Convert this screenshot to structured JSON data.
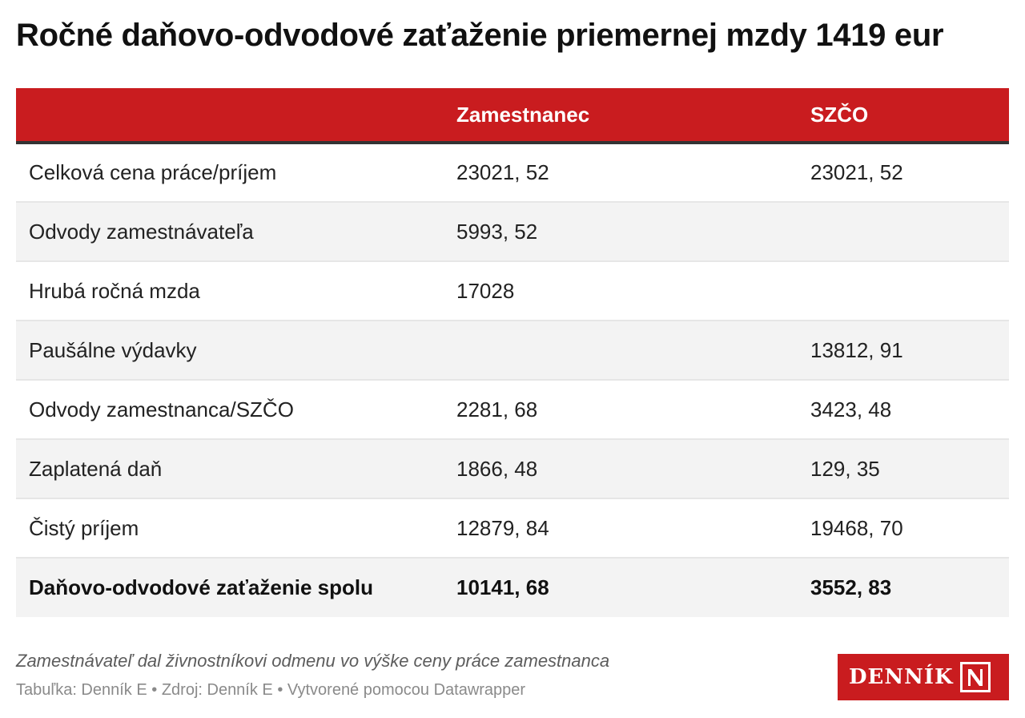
{
  "title": "Ročné daňovo-odvodové zaťaženie priemernej mzdy 1419 eur",
  "chart_data": {
    "type": "table",
    "columns": [
      "",
      "Zamestnanec",
      "SZČO"
    ],
    "rows": [
      {
        "label": "Celková cena práce/príjem",
        "zamestnanec": "23021, 52",
        "szco": "23021, 52"
      },
      {
        "label": "Odvody zamestnávateľa",
        "zamestnanec": "5993, 52",
        "szco": ""
      },
      {
        "label": "Hrubá ročná mzda",
        "zamestnanec": "17028",
        "szco": ""
      },
      {
        "label": "Paušálne výdavky",
        "zamestnanec": "",
        "szco": "13812, 91"
      },
      {
        "label": "Odvody zamestnanca/SZČO",
        "zamestnanec": "2281, 68",
        "szco": "3423, 48"
      },
      {
        "label": "Zaplatená daň",
        "zamestnanec": "1866, 48",
        "szco": "129, 35"
      },
      {
        "label": "Čistý príjem",
        "zamestnanec": "12879, 84",
        "szco": "19468, 70"
      }
    ],
    "total": {
      "label": "Daňovo-odvodové zaťaženie spolu",
      "zamestnanec": "10141, 68",
      "szco": "3552, 83"
    }
  },
  "footer": {
    "note": "Zamestnávateľ dal živnostníkovi odmenu vo výške ceny práce zamestnanca",
    "source": "Tabuľka: Denník E • Zdroj: Denník E • Vytvorené pomocou Datawrapper"
  },
  "logo": {
    "text": "DENNÍK N",
    "brand_color": "#c91c1f"
  },
  "colors": {
    "header_bg": "#c91c1f",
    "stripe": "#f3f3f3"
  }
}
